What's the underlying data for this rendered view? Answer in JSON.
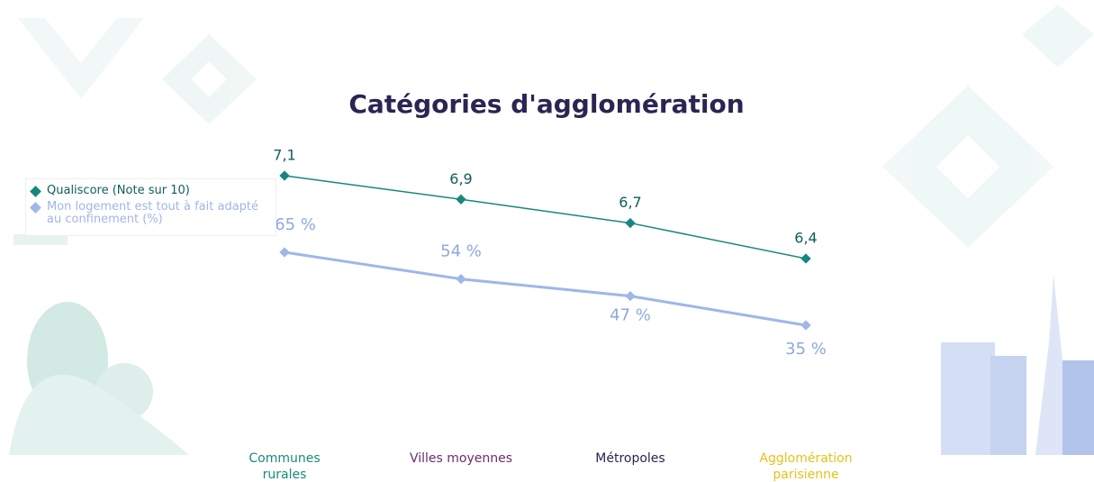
{
  "chart_data": {
    "type": "line",
    "title": "Catégories d'agglomération",
    "categories": [
      "Communes rurales",
      "Villes moyennes",
      "Métropoles",
      "Agglomération parisienne"
    ],
    "category_colors": [
      "#1a8a7c",
      "#6e2a70",
      "#2a2552",
      "#e6c21c"
    ],
    "series": [
      {
        "name": "Qualiscore (Note sur 10)",
        "color": "#16877c",
        "values": [
          7.1,
          6.9,
          6.7,
          6.4
        ],
        "value_labels": [
          "7,1",
          "6,9",
          "6,7",
          "6,4"
        ]
      },
      {
        "name": "Mon logement est tout à fait adapté au confinement (%)",
        "color": "#9fb6e8",
        "values": [
          65,
          54,
          47,
          35
        ],
        "value_labels": [
          "65 %",
          "54 %",
          "47 %",
          "35 %"
        ]
      }
    ]
  }
}
